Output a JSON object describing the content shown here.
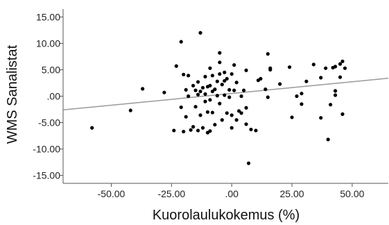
{
  "chart_data": {
    "type": "scatter",
    "title": "",
    "xlabel": "Kuorolaulukokemus (%)",
    "ylabel": "WMS Sanalistat",
    "xlim": [
      -70,
      65
    ],
    "ylim": [
      -16.5,
      16.5
    ],
    "xticks": [
      -50,
      -25,
      0,
      25,
      50
    ],
    "xtick_labels": [
      "-50.00",
      "-25.00",
      ".00",
      "25.00",
      "50.00"
    ],
    "yticks": [
      15,
      10,
      5,
      0,
      -5,
      -10,
      -15
    ],
    "ytick_labels": [
      "15.00",
      "10.00",
      "5.00",
      ".00",
      "-5.00",
      "-10.00",
      "-15.00"
    ],
    "grid": false,
    "legend": "none",
    "point_color": "#000000",
    "line_color": "#999999",
    "fit_line": {
      "x": [
        -70,
        65
      ],
      "y": [
        -2.6,
        3.4
      ]
    },
    "points": [
      [
        -58,
        -6.0
      ],
      [
        -42,
        -2.7
      ],
      [
        -37,
        1.4
      ],
      [
        -28,
        0.7
      ],
      [
        -24,
        -6.5
      ],
      [
        -23,
        5.7
      ],
      [
        -21,
        10.3
      ],
      [
        -21,
        -2.1
      ],
      [
        -20,
        4.1
      ],
      [
        -20,
        -6.7
      ],
      [
        -19,
        1.2
      ],
      [
        -19,
        -3.9
      ],
      [
        -18,
        3.9
      ],
      [
        -18,
        0.0
      ],
      [
        -17,
        -6.4
      ],
      [
        -16,
        2.0
      ],
      [
        -16,
        -5.8
      ],
      [
        -15,
        1.1
      ],
      [
        -15,
        -2.0
      ],
      [
        -14,
        2.7
      ],
      [
        -14,
        -6.5
      ],
      [
        -14,
        0.3
      ],
      [
        -13,
        12.0
      ],
      [
        -13,
        0.9
      ],
      [
        -13,
        -3.6
      ],
      [
        -12,
        1.6
      ],
      [
        -12,
        -6.0
      ],
      [
        -11,
        3.7
      ],
      [
        -11,
        0.4
      ],
      [
        -11,
        -1.0
      ],
      [
        -10,
        -6.9
      ],
      [
        -10,
        -3.0
      ],
      [
        -10,
        1.8
      ],
      [
        -9,
        5.3
      ],
      [
        -9,
        2.0
      ],
      [
        -9,
        -0.7
      ],
      [
        -9,
        -6.6
      ],
      [
        -8,
        3.9
      ],
      [
        -8,
        0.9
      ],
      [
        -8,
        -3.1
      ],
      [
        -7,
        1.3
      ],
      [
        -7,
        -5.4
      ],
      [
        -6,
        2.8
      ],
      [
        -6,
        0.1
      ],
      [
        -5,
        6.4
      ],
      [
        -5,
        4.2
      ],
      [
        -5,
        8.2
      ],
      [
        -5,
        -1.4
      ],
      [
        -4,
        2.2
      ],
      [
        -4,
        -4.5
      ],
      [
        -3,
        4.5
      ],
      [
        -3,
        2.9
      ],
      [
        -3,
        0.2
      ],
      [
        -2,
        -3.2
      ],
      [
        -2,
        3.3
      ],
      [
        -1,
        1.2
      ],
      [
        -1,
        -0.2
      ],
      [
        0,
        4.2
      ],
      [
        0,
        -6.0
      ],
      [
        0,
        -3.6
      ],
      [
        1,
        5.9
      ],
      [
        1,
        1.1
      ],
      [
        2,
        2.6
      ],
      [
        2,
        -4.5
      ],
      [
        3,
        -2.8
      ],
      [
        4,
        0.0
      ],
      [
        4,
        -3.2
      ],
      [
        5,
        1.1
      ],
      [
        6,
        4.9
      ],
      [
        6,
        -2.2
      ],
      [
        6,
        -5.3
      ],
      [
        7,
        -12.7
      ],
      [
        8,
        -6.3
      ],
      [
        10,
        -6.5
      ],
      [
        11,
        3.0
      ],
      [
        12,
        3.3
      ],
      [
        14,
        1.3
      ],
      [
        15,
        8.0
      ],
      [
        16,
        5.0
      ],
      [
        16,
        5.3
      ],
      [
        15,
        -0.2
      ],
      [
        20,
        2.3
      ],
      [
        24,
        5.5
      ],
      [
        25,
        -4.0
      ],
      [
        27,
        0.0
      ],
      [
        29,
        0.5
      ],
      [
        29,
        -1.5
      ],
      [
        31,
        2.8
      ],
      [
        34,
        6.0
      ],
      [
        37,
        3.5
      ],
      [
        37,
        -4.1
      ],
      [
        39,
        5.3
      ],
      [
        40,
        -8.2
      ],
      [
        41,
        -1.6
      ],
      [
        42,
        5.4
      ],
      [
        43,
        1.0
      ],
      [
        43,
        0.2
      ],
      [
        43,
        5.6
      ],
      [
        45,
        6.1
      ],
      [
        45,
        3.6
      ],
      [
        46,
        6.6
      ],
      [
        46,
        -3.4
      ],
      [
        47,
        5.3
      ]
    ]
  }
}
